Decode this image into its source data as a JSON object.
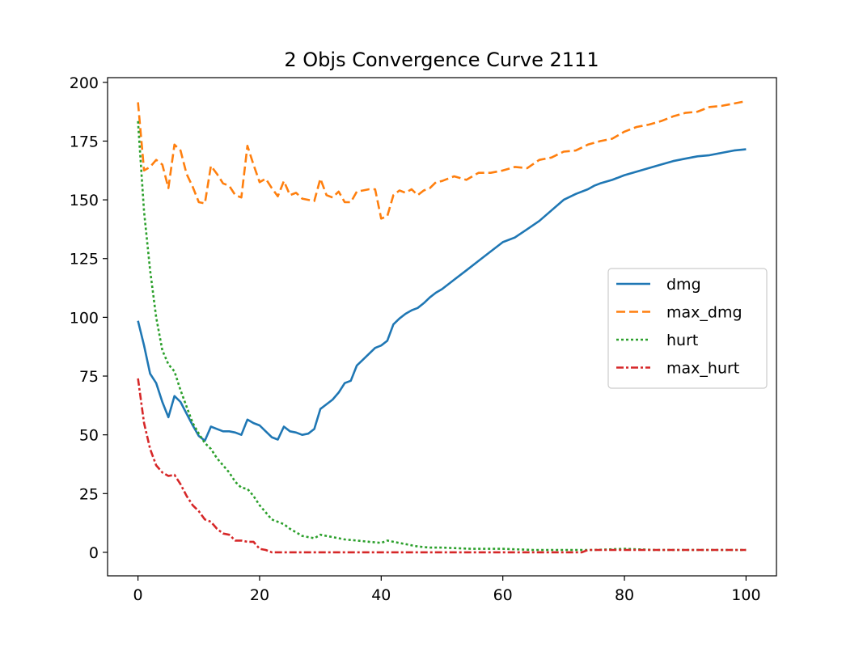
{
  "chart_data": {
    "type": "line",
    "title": "2 Objs Convergence Curve 2111",
    "xlabel": "",
    "ylabel": "",
    "xlim": [
      -5,
      105
    ],
    "ylim": [
      -10,
      202
    ],
    "xticks": [
      0,
      20,
      40,
      60,
      80,
      100
    ],
    "yticks": [
      0,
      25,
      50,
      75,
      100,
      125,
      150,
      175,
      200
    ],
    "grid": false,
    "legend_position": "center-right",
    "series": [
      {
        "name": "dmg",
        "color": "#1f77b4",
        "dash": "solid",
        "x": [
          0,
          1,
          2,
          3,
          4,
          5,
          6,
          7,
          8,
          9,
          10,
          11,
          12,
          13,
          14,
          15,
          16,
          17,
          18,
          19,
          20,
          21,
          22,
          23,
          24,
          25,
          26,
          27,
          28,
          29,
          30,
          31,
          32,
          33,
          34,
          35,
          36,
          37,
          38,
          39,
          40,
          41,
          42,
          43,
          44,
          45,
          46,
          47,
          48,
          49,
          50,
          52,
          54,
          56,
          58,
          60,
          62,
          64,
          66,
          68,
          70,
          72,
          74,
          75,
          76,
          78,
          80,
          82,
          84,
          86,
          88,
          90,
          92,
          94,
          96,
          98,
          100
        ],
        "values": [
          98.5,
          88,
          76,
          72,
          64,
          57.5,
          66.5,
          64,
          59,
          54,
          49.5,
          47.5,
          53.5,
          52.5,
          51.5,
          51.5,
          51,
          50,
          56.5,
          55,
          54,
          51.5,
          49,
          48,
          53.5,
          51.5,
          51,
          50,
          50.5,
          52.5,
          61,
          63,
          65,
          68,
          72,
          73,
          79.5,
          82,
          84.5,
          87,
          88,
          90,
          97,
          99.5,
          101.5,
          103,
          104,
          106,
          108.5,
          110.5,
          112,
          116,
          120,
          124,
          128,
          132,
          134,
          137.5,
          141,
          145.5,
          150,
          152.5,
          154.5,
          156,
          157,
          158.5,
          160.5,
          162,
          163.5,
          165,
          166.5,
          167.5,
          168.5,
          169,
          170,
          171,
          171.5
        ]
      },
      {
        "name": "max_dmg",
        "color": "#ff7f0e",
        "dash": "dashed",
        "x": [
          0,
          1,
          2,
          3,
          4,
          5,
          6,
          7,
          8,
          9,
          10,
          11,
          12,
          13,
          14,
          15,
          16,
          17,
          18,
          19,
          20,
          21,
          22,
          23,
          24,
          25,
          26,
          27,
          28,
          29,
          30,
          31,
          32,
          33,
          34,
          35,
          36,
          37,
          38,
          39,
          40,
          41,
          42,
          43,
          44,
          45,
          46,
          47,
          48,
          49,
          50,
          52,
          54,
          56,
          58,
          60,
          62,
          64,
          66,
          68,
          70,
          72,
          74,
          76,
          78,
          80,
          82,
          84,
          86,
          88,
          90,
          92,
          94,
          96,
          98,
          100
        ],
        "values": [
          191.5,
          162.5,
          164,
          167,
          165,
          155,
          173.5,
          171,
          161,
          155.5,
          149,
          148.5,
          164.5,
          161,
          157,
          156,
          152,
          151,
          173,
          165,
          157.5,
          159,
          155,
          151.5,
          158,
          152,
          153,
          150.5,
          150,
          149.5,
          159,
          152,
          151,
          153.5,
          149,
          149,
          153.5,
          154,
          154.5,
          154.5,
          142,
          143,
          152,
          154,
          153,
          154.5,
          152,
          154,
          155,
          157.5,
          158,
          160,
          158.5,
          161.5,
          161.5,
          162.5,
          164,
          163.5,
          167,
          168,
          170.5,
          171,
          173.5,
          175,
          176,
          179,
          181,
          182,
          183.5,
          185.5,
          187,
          187.5,
          189.5,
          190,
          191,
          192
        ]
      },
      {
        "name": "hurt",
        "color": "#2ca02c",
        "dash": "dotted",
        "x": [
          0,
          1,
          2,
          3,
          4,
          5,
          6,
          7,
          8,
          9,
          10,
          11,
          12,
          13,
          14,
          15,
          16,
          17,
          18,
          19,
          20,
          21,
          22,
          23,
          24,
          25,
          26,
          27,
          28,
          29,
          30,
          32,
          34,
          36,
          38,
          40,
          41,
          42,
          44,
          46,
          48,
          50,
          55,
          60,
          65,
          70,
          75,
          80,
          85,
          90,
          95,
          100
        ],
        "values": [
          183.5,
          145,
          120,
          100,
          86,
          80,
          77,
          69,
          62,
          55,
          50.5,
          46.5,
          44,
          40,
          37,
          34,
          30,
          27.5,
          27,
          24,
          20,
          17,
          14,
          13,
          12,
          10,
          8.5,
          7,
          6.5,
          6,
          7.5,
          6.5,
          5.5,
          5,
          4.5,
          4,
          5,
          4.5,
          3.5,
          2.5,
          2,
          2,
          1.5,
          1.5,
          1,
          1,
          1,
          1.5,
          1,
          1,
          1,
          1
        ]
      },
      {
        "name": "max_hurt",
        "color": "#d62728",
        "dash": "dashdot",
        "x": [
          0,
          1,
          2,
          3,
          4,
          5,
          6,
          7,
          8,
          9,
          10,
          11,
          12,
          13,
          14,
          15,
          16,
          17,
          18,
          19,
          20,
          21,
          22,
          23,
          24,
          25,
          30,
          40,
          50,
          60,
          70,
          73,
          74,
          80,
          90,
          100
        ],
        "values": [
          74,
          55,
          44,
          37,
          34,
          32.5,
          33,
          29,
          24,
          20,
          17.5,
          14,
          13,
          10,
          8,
          7.5,
          5,
          5,
          4.5,
          4.5,
          1.5,
          1,
          0,
          0,
          0,
          0,
          0,
          0,
          0,
          0,
          0,
          0,
          1,
          1,
          1,
          1
        ]
      }
    ]
  }
}
